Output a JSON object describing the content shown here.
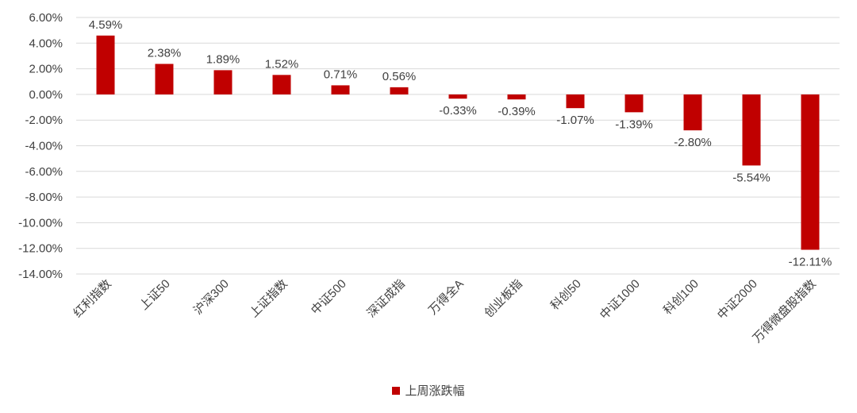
{
  "chart_data": {
    "type": "bar",
    "categories": [
      "红利指数",
      "上证50",
      "沪深300",
      "上证指数",
      "中证500",
      "深证成指",
      "万得全A",
      "创业板指",
      "科创50",
      "中证1000",
      "科创100",
      "中证2000",
      "万得微盘股指数"
    ],
    "series": [
      {
        "name": "上周涨跌幅",
        "values": [
          4.59,
          2.38,
          1.89,
          1.52,
          0.71,
          0.56,
          -0.33,
          -0.39,
          -1.07,
          -1.39,
          -2.8,
          -5.54,
          -12.11
        ],
        "value_labels": [
          "4.59%",
          "2.38%",
          "1.89%",
          "1.52%",
          "0.71%",
          "0.56%",
          "-0.33%",
          "-0.39%",
          "-1.07%",
          "-1.39%",
          "-2.80%",
          "-5.54%",
          "-12.11%"
        ],
        "color": "#C00000"
      }
    ],
    "yticks": [
      6,
      4,
      2,
      0,
      -2,
      -4,
      -6,
      -8,
      -10,
      -12,
      -14
    ],
    "ytick_labels": [
      "6.00%",
      "4.00%",
      "2.00%",
      "0.00%",
      "-2.00%",
      "-4.00%",
      "-6.00%",
      "-8.00%",
      "-10.00%",
      "-12.00%",
      "-14.00%"
    ],
    "ylim": [
      -14,
      6
    ],
    "grid": true,
    "legend_position": "bottom",
    "title": "",
    "xlabel": "",
    "ylabel": ""
  },
  "legend": {
    "label": "上周涨跌幅",
    "color": "#C00000"
  },
  "colors": {
    "bar": "#C00000",
    "grid": "#D9D9D9",
    "text": "#404040"
  }
}
